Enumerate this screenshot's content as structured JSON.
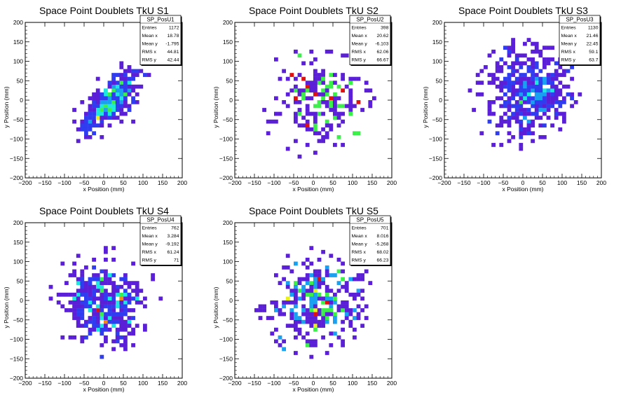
{
  "chart_data": [
    {
      "type": "heatmap",
      "title": "Space Point Doublets TkU S1",
      "xlabel": "x Position (mm)",
      "ylabel": "y Position (mm)",
      "xlim": [
        -200,
        200
      ],
      "ylim": [
        -200,
        200
      ],
      "ticks": [
        -200,
        -150,
        -100,
        -50,
        0,
        50,
        100,
        150,
        200
      ],
      "stats": {
        "name": "SP_PosU1",
        "rows": [
          {
            "label": "Entries",
            "value": "1172"
          },
          {
            "label": "Mean x",
            "value": "18.78"
          },
          {
            "label": "Mean y",
            "value": "-1.795"
          },
          {
            "label": "RMS x",
            "value": "44.81"
          },
          {
            "label": "RMS y",
            "value": "42.44"
          }
        ]
      },
      "distribution": {
        "seed": 11,
        "entries": 380,
        "cx": 20,
        "cy": 0,
        "rms": 45,
        "corr": 0.75,
        "corePeak": 0.95,
        "radius": 130,
        "palette_max_level": "yellow"
      }
    },
    {
      "type": "heatmap",
      "title": "Space Point Doublets TkU S2",
      "xlabel": "x Position (mm)",
      "ylabel": "y Position (mm)",
      "xlim": [
        -200,
        200
      ],
      "ylim": [
        -200,
        200
      ],
      "ticks": [
        -200,
        -150,
        -100,
        -50,
        0,
        50,
        100,
        150,
        200
      ],
      "stats": {
        "name": "SP_PosU2",
        "rows": [
          {
            "label": "Entries",
            "value": "398"
          },
          {
            "label": "Mean x",
            "value": "20.62"
          },
          {
            "label": "Mean y",
            "value": "-6.103"
          },
          {
            "label": "RMS x",
            "value": "62.06"
          },
          {
            "label": "RMS y",
            "value": "66.67"
          }
        ]
      },
      "distribution": {
        "seed": 23,
        "entries": 230,
        "cx": 20,
        "cy": -6,
        "rms": 62,
        "corr": 0.0,
        "corePeak": 0.9,
        "radius": 150,
        "palette_max_level": "red"
      }
    },
    {
      "type": "heatmap",
      "title": "Space Point Doublets TkU S3",
      "xlabel": "x Position (mm)",
      "ylabel": "y Position (mm)",
      "xlim": [
        -200,
        200
      ],
      "ylim": [
        -200,
        200
      ],
      "ticks": [
        -200,
        -150,
        -100,
        -50,
        0,
        50,
        100,
        150,
        200
      ],
      "stats": {
        "name": "SP_PosU3",
        "rows": [
          {
            "label": "Entries",
            "value": "1130"
          },
          {
            "label": "Mean x",
            "value": "21.46"
          },
          {
            "label": "Mean y",
            "value": "22.45"
          },
          {
            "label": "RMS x",
            "value": "59.1"
          },
          {
            "label": "RMS y",
            "value": "63.7"
          }
        ]
      },
      "distribution": {
        "seed": 37,
        "entries": 520,
        "cx": 21,
        "cy": 22,
        "rms": 60,
        "corr": 0.1,
        "corePeak": 0.7,
        "radius": 150,
        "palette_max_level": "green"
      }
    },
    {
      "type": "heatmap",
      "title": "Space Point Doublets TkU S4",
      "xlabel": "x Position (mm)",
      "ylabel": "y Position (mm)",
      "xlim": [
        -200,
        200
      ],
      "ylim": [
        -200,
        200
      ],
      "ticks": [
        -200,
        -150,
        -100,
        -50,
        0,
        50,
        100,
        150,
        200
      ],
      "stats": {
        "name": "SP_PosU4",
        "rows": [
          {
            "label": "Entries",
            "value": "762"
          },
          {
            "label": "Mean x",
            "value": "3.284"
          },
          {
            "label": "Mean y",
            "value": "-9.192"
          },
          {
            "label": "RMS x",
            "value": "61.24"
          },
          {
            "label": "RMS y",
            "value": "71"
          }
        ]
      },
      "distribution": {
        "seed": 53,
        "entries": 400,
        "cx": 3,
        "cy": -9,
        "rms": 62,
        "corr": 0.0,
        "corePeak": 0.85,
        "radius": 150,
        "palette_max_level": "red"
      }
    },
    {
      "type": "heatmap",
      "title": "Space Point Doublets TkU S5",
      "xlabel": "x Position (mm)",
      "ylabel": "y Position (mm)",
      "xlim": [
        -200,
        200
      ],
      "ylim": [
        -200,
        200
      ],
      "ticks": [
        -200,
        -150,
        -100,
        -50,
        0,
        50,
        100,
        150,
        200
      ],
      "stats": {
        "name": "SP_PosU5",
        "rows": [
          {
            "label": "Entries",
            "value": "701"
          },
          {
            "label": "Mean x",
            "value": "8.016"
          },
          {
            "label": "Mean y",
            "value": "-5.268"
          },
          {
            "label": "RMS x",
            "value": "68.02"
          },
          {
            "label": "RMS y",
            "value": "66.23"
          }
        ]
      },
      "distribution": {
        "seed": 71,
        "entries": 380,
        "cx": 8,
        "cy": -5,
        "rms": 66,
        "corr": 0.0,
        "corePeak": 0.9,
        "radius": 150,
        "palette_max_level": "red"
      }
    }
  ],
  "palette": [
    "#5a1fd6",
    "#2f3cf0",
    "#1aa0f0",
    "#1ce8e0",
    "#3cf04a",
    "#e8f020",
    "#f08a10",
    "#e01010"
  ]
}
